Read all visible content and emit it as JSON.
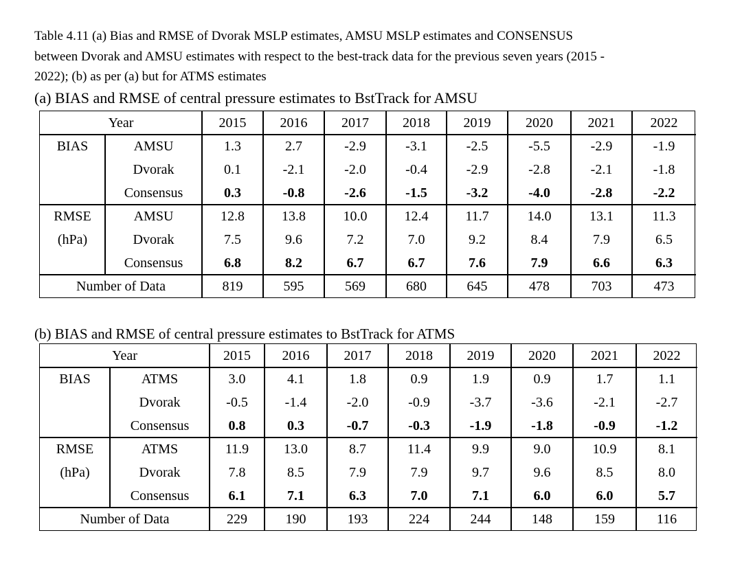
{
  "caption": [
    "Table 4.11   (a) Bias and RMSE of Dvorak MSLP estimates, AMSU MSLP estimates and CONSENSUS",
    "between Dvorak and AMSU estimates with respect to the best-track data for the previous seven years (2015 -",
    "2022); (b) as per (a) but for ATMS estimates"
  ],
  "tables": [
    {
      "title": "(a) BIAS and RMSE of central pressure estimates to BstTrack for AMSU",
      "year_label": "Year",
      "years": [
        "2015",
        "2016",
        "2017",
        "2018",
        "2019",
        "2020",
        "2021",
        "2022"
      ],
      "bias_label": "BIAS",
      "rmse_label": "RMSE",
      "rmse_unit": "(hPa)",
      "bias_rows": [
        {
          "label": "AMSU",
          "values": [
            "1.3",
            "2.7",
            "-2.9",
            "-3.1",
            "-2.5",
            "-5.5",
            "-2.9",
            "-1.9"
          ]
        },
        {
          "label": "Dvorak",
          "values": [
            "0.1",
            "-2.1",
            "-2.0",
            "-0.4",
            "-2.9",
            "-2.8",
            "-2.1",
            "-1.8"
          ]
        },
        {
          "label": "Consensus",
          "values": [
            "0.3",
            "-0.8",
            "-2.6",
            "-1.5",
            "-3.2",
            "-4.0",
            "-2.8",
            "-2.2"
          ]
        }
      ],
      "rmse_rows": [
        {
          "label": "AMSU",
          "values": [
            "12.8",
            "13.8",
            "10.0",
            "12.4",
            "11.7",
            "14.0",
            "13.1",
            "11.3"
          ]
        },
        {
          "label": "Dvorak",
          "values": [
            "7.5",
            "9.6",
            "7.2",
            "7.0",
            "9.2",
            "8.4",
            "7.9",
            "6.5"
          ]
        },
        {
          "label": "Consensus",
          "values": [
            "6.8",
            "8.2",
            "6.7",
            "6.7",
            "7.6",
            "7.9",
            "6.6",
            "6.3"
          ]
        }
      ],
      "count_label": "Number of Data",
      "counts": [
        "819",
        "595",
        "569",
        "680",
        "645",
        "478",
        "703",
        "473"
      ]
    },
    {
      "title": "(b) BIAS and RMSE of central pressure estimates to BstTrack for ATMS",
      "year_label": "Year",
      "years": [
        "2015",
        "2016",
        "2017",
        "2018",
        "2019",
        "2020",
        "2021",
        "2022"
      ],
      "bias_label": "BIAS",
      "rmse_label": "RMSE",
      "rmse_unit": "(hPa)",
      "bias_rows": [
        {
          "label": "ATMS",
          "values": [
            "3.0",
            "4.1",
            "1.8",
            "0.9",
            "1.9",
            "0.9",
            "1.7",
            "1.1"
          ]
        },
        {
          "label": "Dvorak",
          "values": [
            "-0.5",
            "-1.4",
            "-2.0",
            "-0.9",
            "-3.7",
            "-3.6",
            "-2.1",
            "-2.7"
          ]
        },
        {
          "label": "Consensus",
          "values": [
            "0.8",
            "0.3",
            "-0.7",
            "-0.3",
            "-1.9",
            "-1.8",
            "-0.9",
            "-1.2"
          ]
        }
      ],
      "rmse_rows": [
        {
          "label": "ATMS",
          "values": [
            "11.9",
            "13.0",
            "8.7",
            "11.4",
            "9.9",
            "9.0",
            "10.9",
            "8.1"
          ]
        },
        {
          "label": "Dvorak",
          "values": [
            "7.8",
            "8.5",
            "7.9",
            "7.9",
            "9.7",
            "9.6",
            "8.5",
            "8.0"
          ]
        },
        {
          "label": "Consensus",
          "values": [
            "6.1",
            "7.1",
            "6.3",
            "7.0",
            "7.1",
            "6.0",
            "6.0",
            "5.7"
          ]
        }
      ],
      "count_label": "Number of Data",
      "counts": [
        "229",
        "190",
        "193",
        "224",
        "244",
        "148",
        "159",
        "116"
      ]
    }
  ]
}
